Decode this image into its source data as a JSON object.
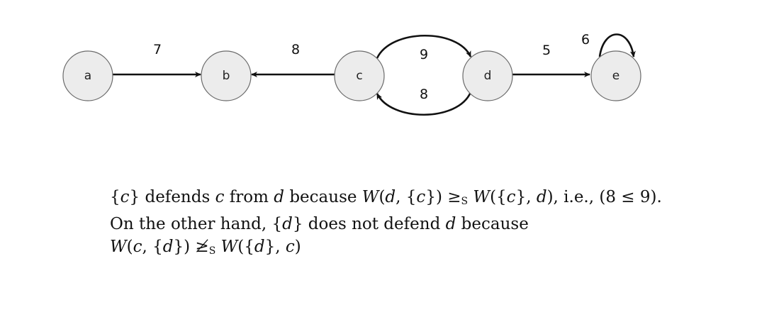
{
  "graph": {
    "nodes": [
      {
        "id": "a",
        "label": "a"
      },
      {
        "id": "b",
        "label": "b"
      },
      {
        "id": "c",
        "label": "c"
      },
      {
        "id": "d",
        "label": "d"
      },
      {
        "id": "e",
        "label": "e"
      }
    ],
    "edges": [
      {
        "from": "a",
        "to": "b",
        "weight": "7"
      },
      {
        "from": "c",
        "to": "b",
        "weight": "8"
      },
      {
        "from": "c",
        "to": "d",
        "weight": "9"
      },
      {
        "from": "d",
        "to": "c",
        "weight": "8"
      },
      {
        "from": "d",
        "to": "e",
        "weight": "5"
      },
      {
        "from": "e",
        "to": "e",
        "weight": "6"
      }
    ]
  },
  "explanation": {
    "line1": {
      "p1": "{",
      "p2": "c",
      "p3": "} defends ",
      "p4": "c",
      "p5": " from ",
      "p6": "d",
      "p7": " because ",
      "p8": "W",
      "p9": "(",
      "p10": "d",
      "p11": ", {",
      "p12": "c",
      "p13": "}) ≥",
      "p14": "S",
      "p15": " ",
      "p16": "W",
      "p17": "({",
      "p18": "c",
      "p19": "}, ",
      "p20": "d",
      "p21": "), i.e., (8 ≤ 9)."
    },
    "line2": {
      "p1": "On the other hand, {",
      "p2": "d",
      "p3": "} does not defend ",
      "p4": "d",
      "p5": " because"
    },
    "line3": {
      "p1": "W",
      "p2": "(",
      "p3": "c",
      "p4": ", {",
      "p5": "d",
      "p6": "}) ≱",
      "p7": "S",
      "p8": " ",
      "p9": "W",
      "p10": "({",
      "p11": "d",
      "p12": "}, ",
      "p13": "c",
      "p14": ")"
    }
  }
}
